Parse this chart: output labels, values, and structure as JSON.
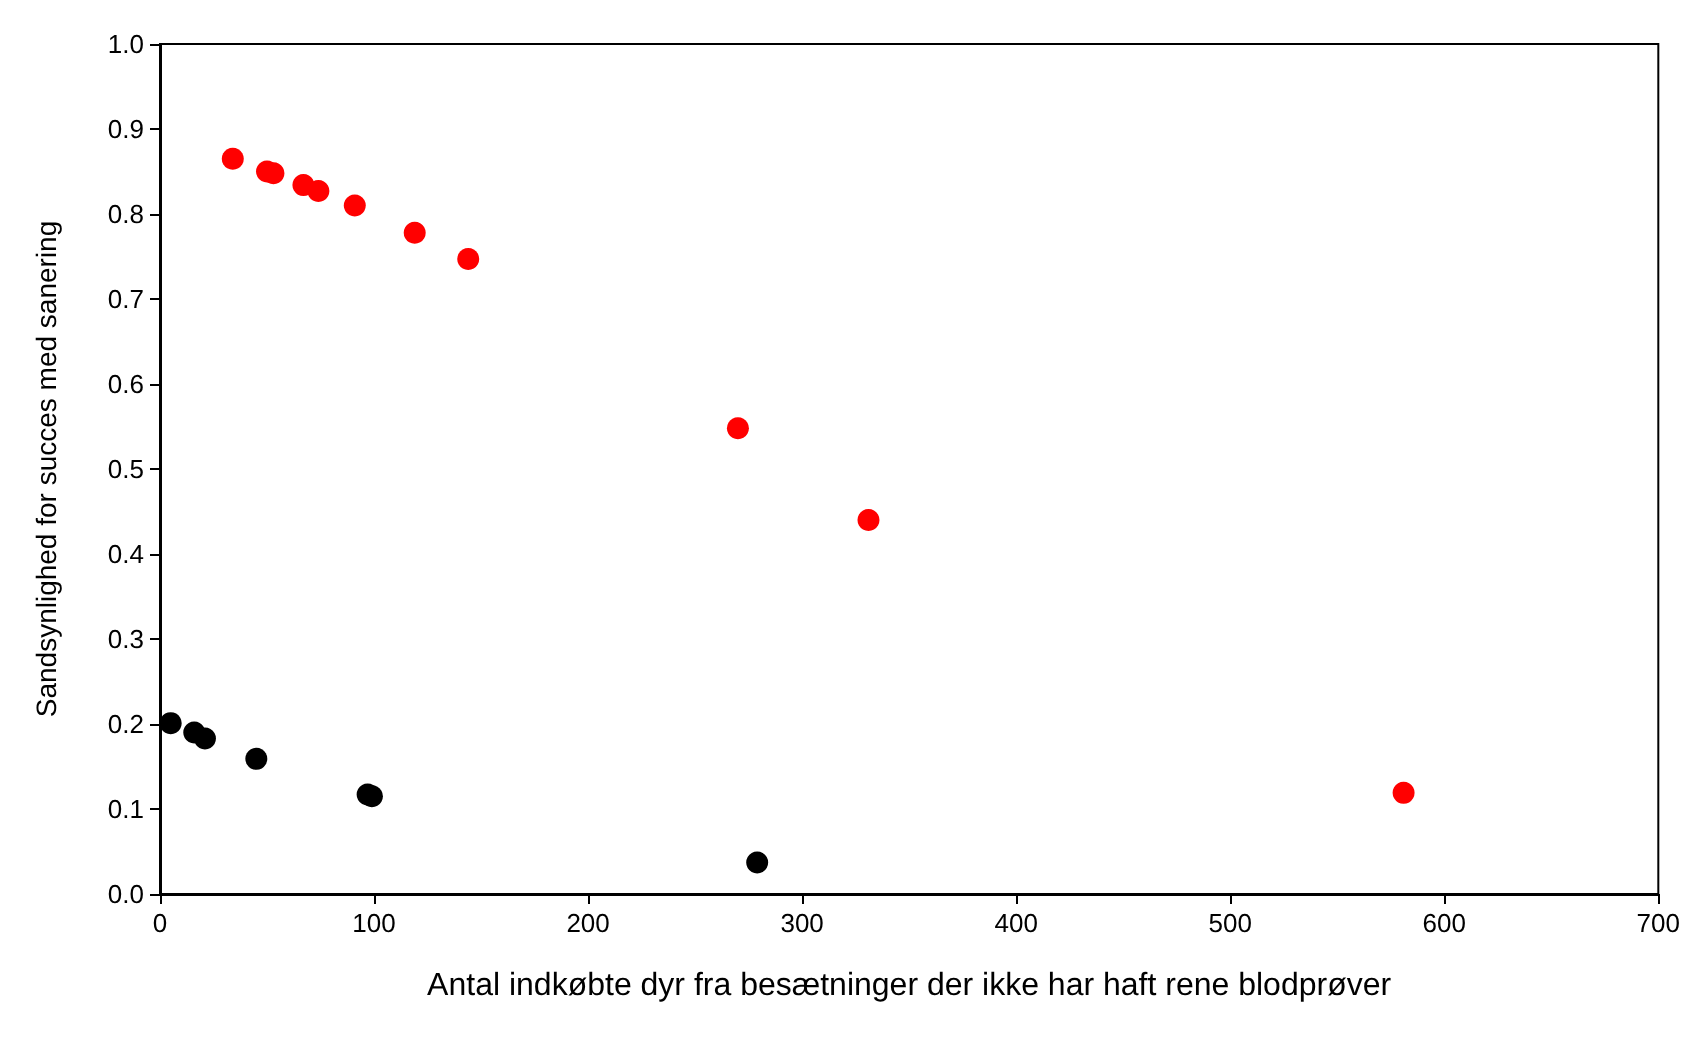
{
  "chart_data": {
    "type": "scatter",
    "xlabel": "Antal indkøbte dyr fra besætninger der ikke har haft rene blodprøver",
    "ylabel": "Sandsynlighed for succes med sanering",
    "series": [
      {
        "color": "#ff0000",
        "x": [
          34,
          50,
          53,
          67,
          74,
          91,
          119,
          144,
          270,
          331,
          581
        ],
        "values": [
          0.865,
          0.85,
          0.848,
          0.834,
          0.827,
          0.81,
          0.778,
          0.747,
          0.548,
          0.44,
          0.119
        ]
      },
      {
        "color": "#000000",
        "x": [
          5,
          16,
          21,
          45,
          97,
          99,
          279
        ],
        "values": [
          0.201,
          0.19,
          0.183,
          0.159,
          0.117,
          0.115,
          0.037
        ]
      }
    ],
    "xlim": [
      0,
      700
    ],
    "xticks": [
      0,
      100,
      200,
      300,
      400,
      500,
      600,
      700
    ],
    "ylim": [
      0,
      1
    ],
    "yticks": [
      {
        "value": 0,
        "label": "0.0"
      },
      {
        "value": 0.1,
        "label": "0.1"
      },
      {
        "value": 0.2,
        "label": "0.2"
      },
      {
        "value": 0.3,
        "label": "0.3"
      },
      {
        "value": 0.4,
        "label": "0.4"
      },
      {
        "value": 0.5,
        "label": "0.5"
      },
      {
        "value": 0.6,
        "label": "0.6"
      },
      {
        "value": 0.7,
        "label": "0.7"
      },
      {
        "value": 0.8,
        "label": "0.8"
      },
      {
        "value": 0.9,
        "label": "0.9"
      },
      {
        "value": 1,
        "label": "1.0"
      }
    ],
    "marker": "circle"
  }
}
